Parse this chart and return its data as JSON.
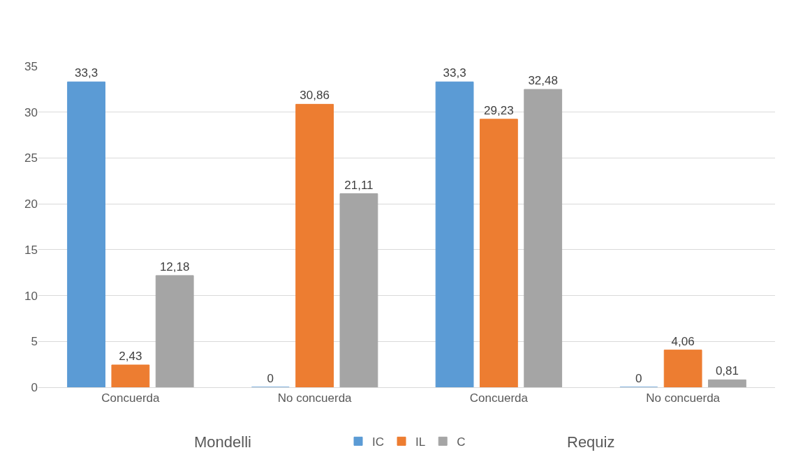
{
  "chart_data": {
    "type": "bar",
    "categories": [
      "Concuerda",
      "No concuerda",
      "Concuerda",
      "No concuerda"
    ],
    "annotations": [
      "Mondelli",
      "Requiz"
    ],
    "series": [
      {
        "name": "IC",
        "color": "#5b9bd5",
        "values": [
          33.3,
          0,
          33.3,
          0
        ],
        "value_labels": [
          "33,3",
          "0",
          "33,3",
          "0"
        ]
      },
      {
        "name": "IL",
        "color": "#ed7d31",
        "values": [
          2.43,
          30.86,
          29.23,
          4.06
        ],
        "value_labels": [
          "2,43",
          "30,86",
          "29,23",
          "4,06"
        ]
      },
      {
        "name": "C",
        "color": "#a5a5a5",
        "values": [
          12.18,
          21.11,
          32.48,
          0.81
        ],
        "value_labels": [
          "12,18",
          "21,11",
          "32,48",
          "0,81"
        ]
      }
    ],
    "ylim": [
      0,
      35
    ],
    "yticks": [
      0,
      5,
      10,
      15,
      20,
      25,
      30,
      35
    ],
    "grid": "y",
    "legend": "bottom"
  }
}
